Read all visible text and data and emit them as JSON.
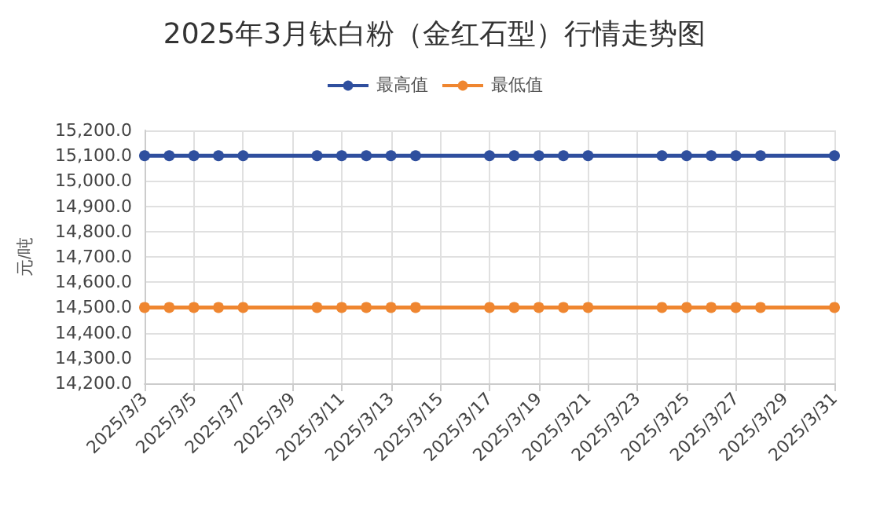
{
  "chart_data": {
    "type": "line",
    "title": "2025年3月钛白粉（金红石型）行情走势图",
    "ylabel": "元/吨",
    "x": [
      "2025-03-03",
      "2025-03-04",
      "2025-03-05",
      "2025-03-06",
      "2025-03-07",
      "2025-03-10",
      "2025-03-11",
      "2025-03-12",
      "2025-03-13",
      "2025-03-14",
      "2025-03-17",
      "2025-03-18",
      "2025-03-19",
      "2025-03-20",
      "2025-03-21",
      "2025-03-24",
      "2025-03-25",
      "2025-03-26",
      "2025-03-27",
      "2025-03-28",
      "2025-03-31"
    ],
    "series": [
      {
        "name": "最高值",
        "color": "#2f4f9e",
        "values": [
          15100,
          15100,
          15100,
          15100,
          15100,
          15100,
          15100,
          15100,
          15100,
          15100,
          15100,
          15100,
          15100,
          15100,
          15100,
          15100,
          15100,
          15100,
          15100,
          15100,
          15100
        ]
      },
      {
        "name": "最低值",
        "color": "#ef8630",
        "values": [
          14500,
          14500,
          14500,
          14500,
          14500,
          14500,
          14500,
          14500,
          14500,
          14500,
          14500,
          14500,
          14500,
          14500,
          14500,
          14500,
          14500,
          14500,
          14500,
          14500,
          14500
        ]
      }
    ],
    "xlim": [
      "2025-03-03",
      "2025-03-31"
    ],
    "xticks": [
      {
        "value": "2025-03-03",
        "label": "2025/3/3"
      },
      {
        "value": "2025-03-05",
        "label": "2025/3/5"
      },
      {
        "value": "2025-03-07",
        "label": "2025/3/7"
      },
      {
        "value": "2025-03-09",
        "label": "2025/3/9"
      },
      {
        "value": "2025-03-11",
        "label": "2025/3/11"
      },
      {
        "value": "2025-03-13",
        "label": "2025/3/13"
      },
      {
        "value": "2025-03-15",
        "label": "2025/3/15"
      },
      {
        "value": "2025-03-17",
        "label": "2025/3/17"
      },
      {
        "value": "2025-03-19",
        "label": "2025/3/19"
      },
      {
        "value": "2025-03-21",
        "label": "2025/3/21"
      },
      {
        "value": "2025-03-23",
        "label": "2025/3/23"
      },
      {
        "value": "2025-03-25",
        "label": "2025/3/25"
      },
      {
        "value": "2025-03-27",
        "label": "2025/3/27"
      },
      {
        "value": "2025-03-29",
        "label": "2025/3/29"
      },
      {
        "value": "2025-03-31",
        "label": "2025/3/31"
      }
    ],
    "ylim": [
      14200,
      15200
    ],
    "yticks": [
      {
        "value": 14200,
        "label": "14,200.0"
      },
      {
        "value": 14300,
        "label": "14,300.0"
      },
      {
        "value": 14400,
        "label": "14,400.0"
      },
      {
        "value": 14500,
        "label": "14,500.0"
      },
      {
        "value": 14600,
        "label": "14,600.0"
      },
      {
        "value": 14700,
        "label": "14,700.0"
      },
      {
        "value": 14800,
        "label": "14,800.0"
      },
      {
        "value": 14900,
        "label": "14,900.0"
      },
      {
        "value": 15000,
        "label": "15,000.0"
      },
      {
        "value": 15100,
        "label": "15,100.0"
      },
      {
        "value": 15200,
        "label": "15,200.0"
      }
    ],
    "grid": true,
    "legend": "top",
    "marker": "circle",
    "line_style": "solid"
  }
}
